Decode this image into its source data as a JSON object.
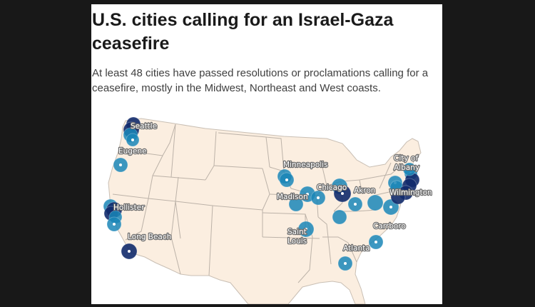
{
  "header": {
    "title": "U.S. cities calling for an Israel-Gaza ceasefire",
    "subtitle": "At least 48 cities have passed resolutions or proclamations calling for a ceasefire, mostly in the Midwest, Northeast and West coasts."
  },
  "map": {
    "colors": {
      "land": "#fbeee0",
      "state_border": "#bcb2a8",
      "marker_light": "#1a86b7",
      "marker_dark": "#112a6b",
      "marker_center": "#ffffff"
    },
    "labels": [
      {
        "id": "seattle",
        "text": "Seattle"
      },
      {
        "id": "eugene",
        "text": "Eugene"
      },
      {
        "id": "hollister",
        "text": "Hollister"
      },
      {
        "id": "long-beach",
        "text": "Long Beach"
      },
      {
        "id": "minneapolis",
        "text": "Minneapolis"
      },
      {
        "id": "madison",
        "text": "Madison"
      },
      {
        "id": "chicago",
        "text": "Chicago"
      },
      {
        "id": "akron",
        "text": "Akron"
      },
      {
        "id": "saint",
        "text": "Saint"
      },
      {
        "id": "louis",
        "text": "Louis"
      },
      {
        "id": "carrboro",
        "text": "Carrboro"
      },
      {
        "id": "atlanta",
        "text": "Atlanta"
      },
      {
        "id": "city-of",
        "text": "City of"
      },
      {
        "id": "albany",
        "text": "Albany"
      },
      {
        "id": "wilmington",
        "text": "Wilmington"
      }
    ]
  }
}
